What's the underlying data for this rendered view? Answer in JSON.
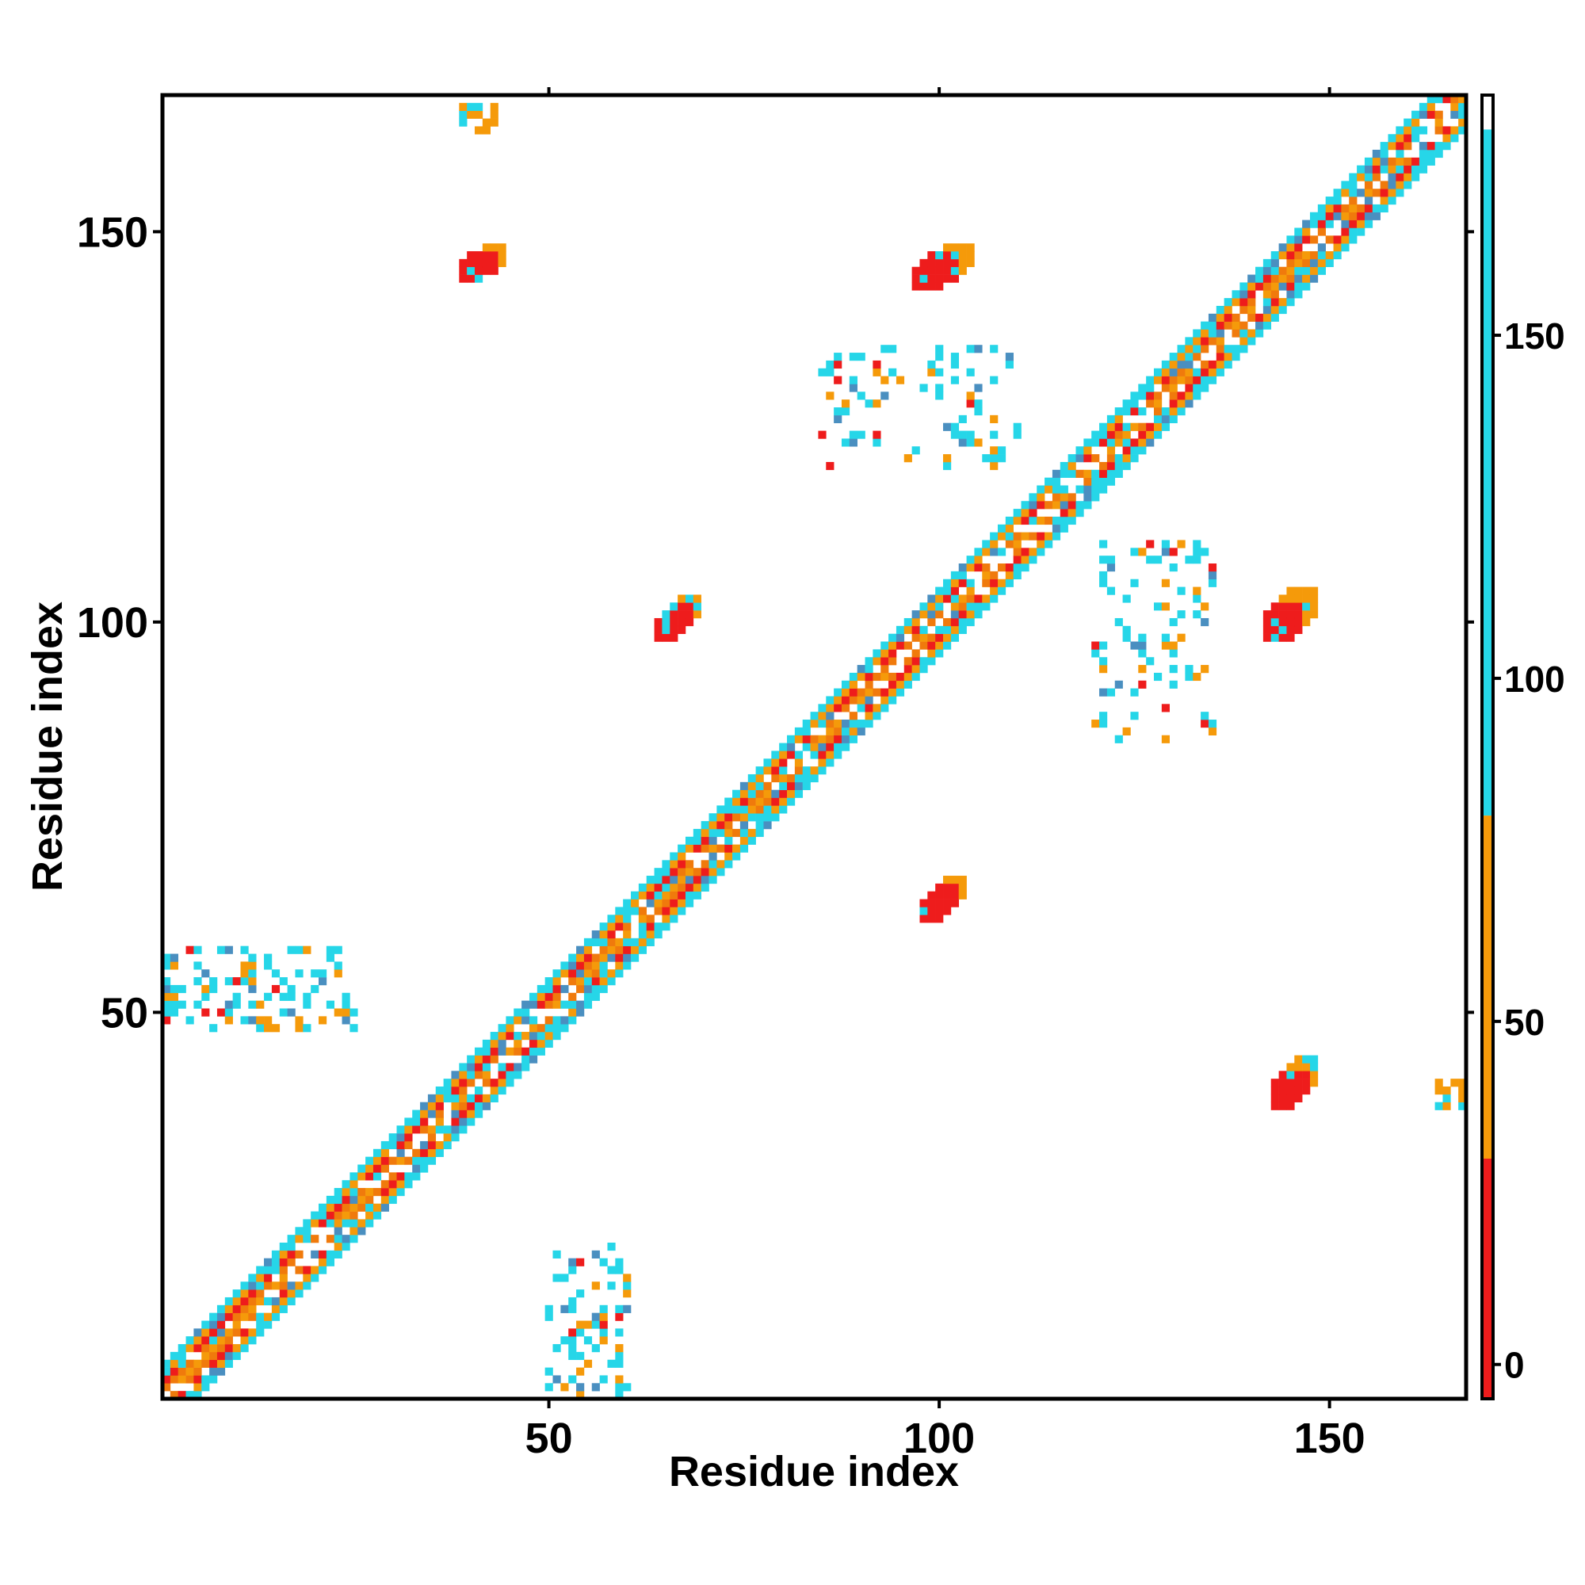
{
  "chart_data": {
    "type": "heatmap",
    "title": "",
    "xlabel": "Residue index",
    "ylabel": "Residue index",
    "xlim": [
      1,
      167
    ],
    "ylim": [
      1,
      167
    ],
    "x_ticks": [
      50,
      100,
      150
    ],
    "y_ticks": [
      50,
      100,
      150
    ],
    "colorbar": {
      "ticks": [
        0,
        50,
        100,
        150
      ],
      "range": [
        -5,
        185
      ],
      "bands": [
        {
          "from": -5,
          "to": 30,
          "color": "#ee1c1c"
        },
        {
          "from": 30,
          "to": 80,
          "color": "#f59a0a"
        },
        {
          "from": 80,
          "to": 180,
          "color": "#26d6e8"
        },
        {
          "from": 180,
          "to": 185,
          "color": "#ffffff"
        }
      ]
    },
    "colors": {
      "low": "#ee1c1c",
      "mid": "#f07a0c",
      "orange": "#f59a0a",
      "cyan": "#26d6e8",
      "steel": "#4a8fc0"
    },
    "regions": [
      {
        "kind": "diag",
        "from": 1,
        "to": 167,
        "width": 4
      },
      {
        "kind": "blob",
        "x": [
          39,
          44
        ],
        "y": [
          144,
          148
        ],
        "value": 10
      },
      {
        "kind": "blob",
        "x": [
          97,
          104
        ],
        "y": [
          143,
          148
        ],
        "value": 12
      },
      {
        "kind": "blob",
        "x": [
          64,
          69
        ],
        "y": [
          98,
          103
        ],
        "value": 15
      },
      {
        "kind": "blob",
        "x": [
          98,
          103
        ],
        "y": [
          62,
          67
        ],
        "value": 12
      },
      {
        "kind": "blob",
        "x": [
          142,
          148
        ],
        "y": [
          98,
          104
        ],
        "value": 10
      },
      {
        "kind": "blob",
        "x": [
          143,
          148
        ],
        "y": [
          38,
          44
        ],
        "value": 12
      },
      {
        "kind": "scatter",
        "x": [
          1,
          25
        ],
        "y": [
          48,
          58
        ],
        "value": 110,
        "density": 0.35
      },
      {
        "kind": "scatter",
        "x": [
          50,
          60
        ],
        "y": [
          1,
          20
        ],
        "value": 100,
        "density": 0.3
      },
      {
        "kind": "scatter",
        "x": [
          85,
          110
        ],
        "y": [
          120,
          135
        ],
        "value": 95,
        "density": 0.2
      },
      {
        "kind": "scatter",
        "x": [
          120,
          135
        ],
        "y": [
          85,
          110
        ],
        "value": 95,
        "density": 0.2
      },
      {
        "kind": "patch",
        "x": [
          39,
          43
        ],
        "y": [
          163,
          166
        ],
        "value": 60
      },
      {
        "kind": "patch",
        "x": [
          164,
          167
        ],
        "y": [
          38,
          41
        ],
        "value": 60
      }
    ]
  }
}
